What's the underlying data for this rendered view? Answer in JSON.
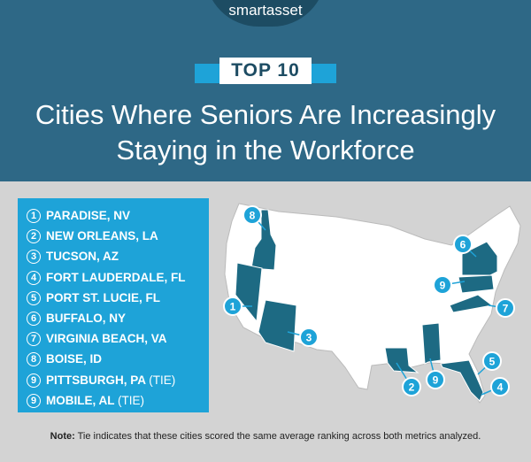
{
  "header": {
    "logo": "smartasset",
    "badge": "TOP 10",
    "title": [
      "Cities Where Seniors Are Increasingly",
      "Staying in the Workforce"
    ]
  },
  "list": [
    {
      "rank": "1",
      "city": "PARADISE, NV"
    },
    {
      "rank": "2",
      "city": "NEW ORLEANS, LA"
    },
    {
      "rank": "3",
      "city": "TUCSON, AZ"
    },
    {
      "rank": "4",
      "city": "FORT LAUDERDALE, FL"
    },
    {
      "rank": "5",
      "city": "PORT ST. LUCIE, FL"
    },
    {
      "rank": "6",
      "city": "BUFFALO, NY"
    },
    {
      "rank": "7",
      "city": "VIRGINIA BEACH, VA"
    },
    {
      "rank": "8",
      "city": "BOISE, ID"
    },
    {
      "rank": "9",
      "city": "PITTSBURGH, PA",
      "tag": "(TIE)"
    },
    {
      "rank": "9",
      "city": "MOBILE, AL",
      "tag": "(TIE)"
    }
  ],
  "map": {
    "markers": [
      "8",
      "1",
      "3",
      "2",
      "9",
      "5",
      "4",
      "6",
      "9",
      "7"
    ]
  },
  "note": {
    "label": "Note:",
    "text": "Tie indicates that these cities scored the same average ranking across both metrics analyzed."
  }
}
